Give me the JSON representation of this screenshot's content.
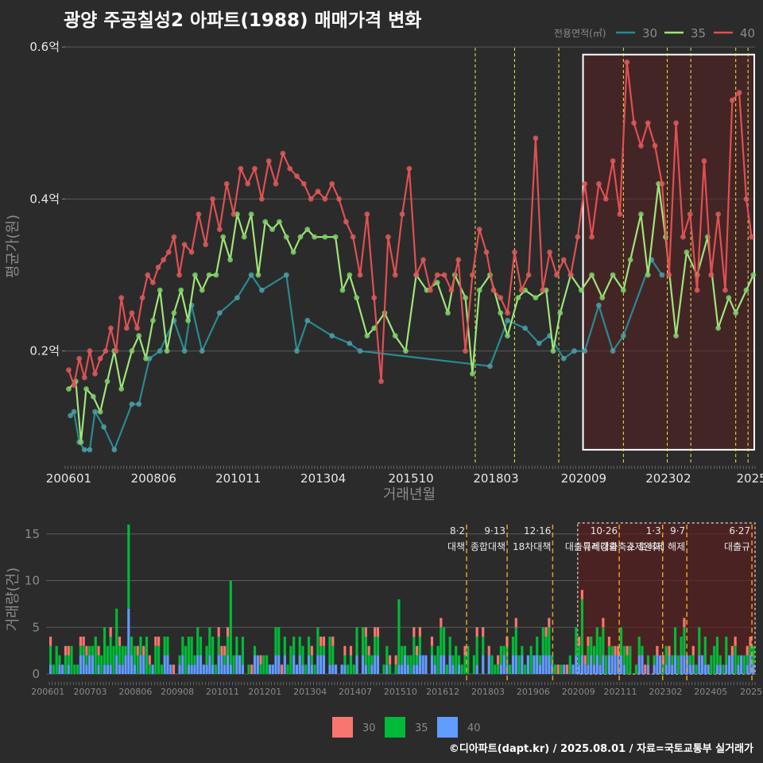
{
  "title": "광양 주공칠성2 아파트(1988) 매매가격 변화",
  "footer": "©디아파트(dapt.kr) / 2025.08.01 / 자료=국토교통부 실거래가",
  "colors": {
    "bg": "#2b2b2b",
    "grid": "#5a5a5a",
    "line30": "#2a8a92",
    "line35": "#9ee57a",
    "line40": "#e04f52",
    "pt30": "#4e9ea3",
    "pt35": "#7fcf6a",
    "pt40": "#d95b5b",
    "bar30": "#f8766d",
    "bar35": "#00ba38",
    "bar40": "#619cff",
    "vline_top": "#e8e84a",
    "vline_bottom": "#e8a020",
    "highlight_fill": "#5a2020",
    "text_light": "#e6e6e6",
    "text_dim": "#8a8a8a"
  },
  "chart_data": [
    {
      "type": "line",
      "title": "광양 주공칠성2 아파트(1988) 매매가격 변화",
      "xlabel": "거래년월",
      "ylabel": "평균가(원)",
      "x_tick_labels": [
        "200601",
        "200806",
        "201011",
        "201304",
        "201510",
        "201803",
        "202009",
        "202302",
        "2025"
      ],
      "y_ticks": [
        0.2,
        0.4,
        0.6
      ],
      "y_tick_labels": [
        "0.2억",
        "0.4억",
        "0.6억"
      ],
      "ylim": [
        0.05,
        0.62
      ],
      "xlim": [
        2005.9,
        2025.55
      ],
      "legend": {
        "title": "전용면적(㎡)",
        "position": "top-right"
      },
      "grid": true,
      "policy_dates": [
        2017.58,
        2018.7,
        2019.96,
        2021.8,
        2023.05,
        2023.72,
        2025.0,
        2025.35
      ],
      "highlight_range": [
        2020.65,
        2025.55
      ],
      "highlight_y": [
        0.07,
        0.59
      ],
      "series": [
        {
          "name": "30",
          "points": [
            [
              2006.05,
              0.115
            ],
            [
              2006.15,
              0.12
            ],
            [
              2006.3,
              0.08
            ],
            [
              2006.45,
              0.07
            ],
            [
              2006.6,
              0.07
            ],
            [
              2006.75,
              0.12
            ],
            [
              2007.0,
              0.1
            ],
            [
              2007.3,
              0.07
            ],
            [
              2007.8,
              0.13
            ],
            [
              2008.0,
              0.13
            ],
            [
              2008.3,
              0.19
            ],
            [
              2008.6,
              0.2
            ],
            [
              2009.0,
              0.24
            ],
            [
              2009.3,
              0.2
            ],
            [
              2009.5,
              0.26
            ],
            [
              2009.8,
              0.2
            ],
            [
              2010.3,
              0.25
            ],
            [
              2010.8,
              0.27
            ],
            [
              2011.2,
              0.3
            ],
            [
              2011.5,
              0.28
            ],
            [
              2012.2,
              0.3
            ],
            [
              2012.5,
              0.2
            ],
            [
              2012.8,
              0.24
            ],
            [
              2013.5,
              0.22
            ],
            [
              2014.0,
              0.21
            ],
            [
              2014.3,
              0.2
            ],
            [
              2018.0,
              0.18
            ],
            [
              2018.5,
              0.24
            ],
            [
              2019.0,
              0.23
            ],
            [
              2019.4,
              0.21
            ],
            [
              2019.7,
              0.22
            ],
            [
              2020.1,
              0.19
            ],
            [
              2020.4,
              0.2
            ],
            [
              2020.7,
              0.2
            ],
            [
              2021.1,
              0.26
            ],
            [
              2021.5,
              0.2
            ],
            [
              2021.8,
              0.22
            ],
            [
              2022.6,
              0.32
            ],
            [
              2022.9,
              0.3
            ]
          ]
        },
        {
          "name": "35",
          "points": [
            [
              2006.0,
              0.15
            ],
            [
              2006.2,
              0.16
            ],
            [
              2006.35,
              0.08
            ],
            [
              2006.5,
              0.15
            ],
            [
              2006.7,
              0.14
            ],
            [
              2006.9,
              0.12
            ],
            [
              2007.1,
              0.16
            ],
            [
              2007.3,
              0.2
            ],
            [
              2007.5,
              0.15
            ],
            [
              2007.8,
              0.2
            ],
            [
              2008.0,
              0.22
            ],
            [
              2008.2,
              0.19
            ],
            [
              2008.4,
              0.24
            ],
            [
              2008.6,
              0.28
            ],
            [
              2008.8,
              0.2
            ],
            [
              2009.0,
              0.25
            ],
            [
              2009.2,
              0.28
            ],
            [
              2009.4,
              0.24
            ],
            [
              2009.6,
              0.3
            ],
            [
              2009.8,
              0.28
            ],
            [
              2010.0,
              0.3
            ],
            [
              2010.2,
              0.3
            ],
            [
              2010.4,
              0.35
            ],
            [
              2010.6,
              0.32
            ],
            [
              2010.8,
              0.38
            ],
            [
              2011.0,
              0.35
            ],
            [
              2011.2,
              0.38
            ],
            [
              2011.4,
              0.3
            ],
            [
              2011.6,
              0.37
            ],
            [
              2011.8,
              0.36
            ],
            [
              2012.0,
              0.37
            ],
            [
              2012.2,
              0.35
            ],
            [
              2012.4,
              0.33
            ],
            [
              2012.6,
              0.35
            ],
            [
              2012.8,
              0.36
            ],
            [
              2013.0,
              0.35
            ],
            [
              2013.3,
              0.35
            ],
            [
              2013.6,
              0.35
            ],
            [
              2013.8,
              0.28
            ],
            [
              2014.0,
              0.3
            ],
            [
              2014.2,
              0.27
            ],
            [
              2014.5,
              0.22
            ],
            [
              2014.7,
              0.23
            ],
            [
              2015.0,
              0.25
            ],
            [
              2015.3,
              0.22
            ],
            [
              2015.6,
              0.2
            ],
            [
              2015.9,
              0.3
            ],
            [
              2016.2,
              0.28
            ],
            [
              2016.5,
              0.29
            ],
            [
              2016.8,
              0.25
            ],
            [
              2017.0,
              0.3
            ],
            [
              2017.3,
              0.27
            ],
            [
              2017.5,
              0.17
            ],
            [
              2017.7,
              0.28
            ],
            [
              2018.0,
              0.3
            ],
            [
              2018.3,
              0.25
            ],
            [
              2018.5,
              0.22
            ],
            [
              2018.8,
              0.27
            ],
            [
              2019.0,
              0.28
            ],
            [
              2019.3,
              0.27
            ],
            [
              2019.6,
              0.28
            ],
            [
              2019.8,
              0.2
            ],
            [
              2020.0,
              0.25
            ],
            [
              2020.3,
              0.3
            ],
            [
              2020.6,
              0.28
            ],
            [
              2020.9,
              0.3
            ],
            [
              2021.2,
              0.27
            ],
            [
              2021.5,
              0.3
            ],
            [
              2021.8,
              0.28
            ],
            [
              2022.0,
              0.32
            ],
            [
              2022.3,
              0.38
            ],
            [
              2022.5,
              0.3
            ],
            [
              2022.8,
              0.42
            ],
            [
              2023.0,
              0.35
            ],
            [
              2023.3,
              0.22
            ],
            [
              2023.6,
              0.33
            ],
            [
              2023.9,
              0.3
            ],
            [
              2024.2,
              0.35
            ],
            [
              2024.5,
              0.23
            ],
            [
              2024.8,
              0.27
            ],
            [
              2025.0,
              0.25
            ],
            [
              2025.3,
              0.28
            ],
            [
              2025.5,
              0.3
            ]
          ]
        },
        {
          "name": "40",
          "points": [
            [
              2006.0,
              0.175
            ],
            [
              2006.15,
              0.155
            ],
            [
              2006.3,
              0.19
            ],
            [
              2006.45,
              0.165
            ],
            [
              2006.6,
              0.2
            ],
            [
              2006.75,
              0.17
            ],
            [
              2006.9,
              0.19
            ],
            [
              2007.05,
              0.2
            ],
            [
              2007.2,
              0.23
            ],
            [
              2007.35,
              0.2
            ],
            [
              2007.5,
              0.27
            ],
            [
              2007.65,
              0.23
            ],
            [
              2007.8,
              0.25
            ],
            [
              2007.95,
              0.23
            ],
            [
              2008.1,
              0.27
            ],
            [
              2008.25,
              0.3
            ],
            [
              2008.4,
              0.29
            ],
            [
              2008.55,
              0.31
            ],
            [
              2008.7,
              0.32
            ],
            [
              2008.85,
              0.33
            ],
            [
              2009.0,
              0.35
            ],
            [
              2009.15,
              0.3
            ],
            [
              2009.3,
              0.34
            ],
            [
              2009.5,
              0.33
            ],
            [
              2009.7,
              0.38
            ],
            [
              2009.9,
              0.34
            ],
            [
              2010.1,
              0.4
            ],
            [
              2010.3,
              0.36
            ],
            [
              2010.5,
              0.42
            ],
            [
              2010.7,
              0.38
            ],
            [
              2010.9,
              0.44
            ],
            [
              2011.1,
              0.42
            ],
            [
              2011.3,
              0.44
            ],
            [
              2011.5,
              0.4
            ],
            [
              2011.7,
              0.45
            ],
            [
              2011.9,
              0.42
            ],
            [
              2012.1,
              0.46
            ],
            [
              2012.3,
              0.44
            ],
            [
              2012.5,
              0.43
            ],
            [
              2012.7,
              0.42
            ],
            [
              2012.9,
              0.4
            ],
            [
              2013.1,
              0.41
            ],
            [
              2013.3,
              0.4
            ],
            [
              2013.5,
              0.42
            ],
            [
              2013.7,
              0.4
            ],
            [
              2013.9,
              0.37
            ],
            [
              2014.1,
              0.35
            ],
            [
              2014.3,
              0.3
            ],
            [
              2014.5,
              0.38
            ],
            [
              2014.7,
              0.27
            ],
            [
              2014.9,
              0.16
            ],
            [
              2015.1,
              0.35
            ],
            [
              2015.3,
              0.3
            ],
            [
              2015.5,
              0.38
            ],
            [
              2015.7,
              0.44
            ],
            [
              2015.9,
              0.3
            ],
            [
              2016.1,
              0.32
            ],
            [
              2016.3,
              0.28
            ],
            [
              2016.5,
              0.3
            ],
            [
              2016.7,
              0.3
            ],
            [
              2016.9,
              0.28
            ],
            [
              2017.1,
              0.32
            ],
            [
              2017.3,
              0.2
            ],
            [
              2017.5,
              0.3
            ],
            [
              2017.7,
              0.36
            ],
            [
              2017.9,
              0.33
            ],
            [
              2018.1,
              0.28
            ],
            [
              2018.3,
              0.27
            ],
            [
              2018.5,
              0.25
            ],
            [
              2018.7,
              0.33
            ],
            [
              2018.9,
              0.28
            ],
            [
              2019.1,
              0.3
            ],
            [
              2019.3,
              0.48
            ],
            [
              2019.5,
              0.28
            ],
            [
              2019.7,
              0.33
            ],
            [
              2019.9,
              0.3
            ],
            [
              2020.1,
              0.32
            ],
            [
              2020.3,
              0.3
            ],
            [
              2020.5,
              0.35
            ],
            [
              2020.7,
              0.42
            ],
            [
              2020.9,
              0.35
            ],
            [
              2021.1,
              0.42
            ],
            [
              2021.3,
              0.4
            ],
            [
              2021.5,
              0.45
            ],
            [
              2021.7,
              0.38
            ],
            [
              2021.9,
              0.58
            ],
            [
              2022.1,
              0.5
            ],
            [
              2022.3,
              0.47
            ],
            [
              2022.5,
              0.5
            ],
            [
              2022.7,
              0.47
            ],
            [
              2022.9,
              0.42
            ],
            [
              2023.1,
              0.3
            ],
            [
              2023.3,
              0.5
            ],
            [
              2023.5,
              0.35
            ],
            [
              2023.7,
              0.38
            ],
            [
              2023.9,
              0.28
            ],
            [
              2024.1,
              0.45
            ],
            [
              2024.3,
              0.3
            ],
            [
              2024.5,
              0.38
            ],
            [
              2024.7,
              0.28
            ],
            [
              2024.9,
              0.53
            ],
            [
              2025.1,
              0.54
            ],
            [
              2025.3,
              0.4
            ],
            [
              2025.45,
              0.35
            ]
          ]
        }
      ]
    },
    {
      "type": "bar",
      "ylabel": "거래량(건)",
      "x_tick_labels": [
        "200601",
        "200703",
        "200806",
        "200908",
        "201011",
        "201201",
        "201304",
        "201407",
        "201510",
        "201612",
        "201803",
        "201906",
        "202009",
        "202111",
        "202302",
        "202405",
        "2025"
      ],
      "y_ticks": [
        0,
        5,
        10,
        15
      ],
      "ylim": [
        0,
        16
      ],
      "legend": {
        "position": "bottom",
        "entries": [
          "30",
          "35",
          "40"
        ]
      },
      "policy_lines": [
        {
          "label": "8·2 대책",
          "x": 2017.58
        },
        {
          "label": "9·13 종합대책",
          "x": 2018.7
        },
        {
          "label": "12·16 18차대책",
          "x": 2019.96
        },
        {
          "label": "10·26 대출규제강화",
          "x": 2021.8
        },
        {
          "label": "1·3 규제완화",
          "x": 2023.0
        },
        {
          "label": "9·7 특례대출축소 토허제 해제",
          "x": 2023.67
        },
        {
          "label": "6·27 대출규",
          "x": 2025.47
        }
      ],
      "highlight_range": [
        2020.65,
        2025.55
      ]
    }
  ]
}
